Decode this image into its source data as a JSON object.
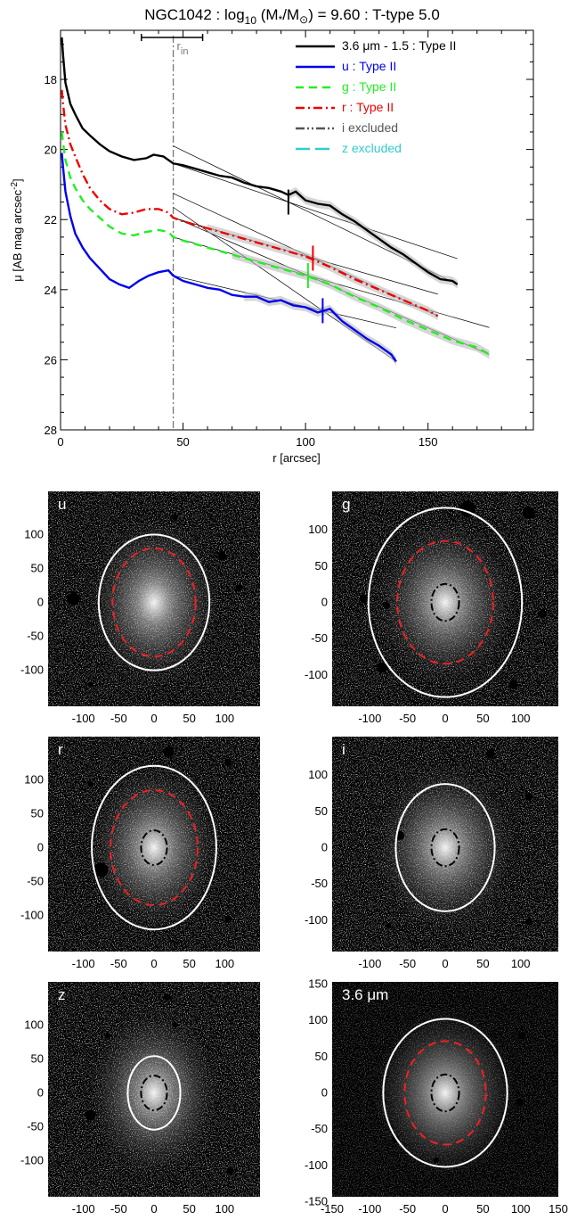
{
  "chart_data": [
    {
      "type": "line",
      "title": "NGC1042 : log10 (M*/M⊙) = 9.60 : T-type 5.0",
      "title_parts": {
        "prefix": "NGC1042 : log",
        "sub": "10",
        "mid": " (M",
        "star": "*",
        "slash": "/M",
        "sun": "⊙",
        "suffix": ") = 9.60 : T-type 5.0"
      },
      "xlabel": "r [arcsec]",
      "ylabel_parts": {
        "main": "μ [AB mag arcsec",
        "sup": "-2",
        "end": "]"
      },
      "xlim": [
        0,
        193
      ],
      "ylim": [
        28,
        16.6
      ],
      "y_inverted": true,
      "xticks": [
        0,
        50,
        100,
        150
      ],
      "yticks": [
        18,
        20,
        22,
        24,
        26,
        28
      ],
      "r_in": {
        "label": "r",
        "sub": "in",
        "value": 46,
        "bar": [
          33,
          58
        ]
      },
      "series": [
        {
          "name": "3.6 μm - 1.5 : Type II",
          "color": "#000000",
          "dash": "solid",
          "x": [
            0.5,
            1,
            2,
            4,
            6,
            9,
            12,
            16,
            20,
            25,
            30,
            35,
            38,
            42,
            46,
            50,
            55,
            60,
            65,
            70,
            75,
            80,
            85,
            90,
            93,
            96,
            100,
            105,
            110,
            115,
            120,
            125,
            130,
            135,
            140,
            145,
            150,
            155,
            160,
            162
          ],
          "y": [
            16.8,
            17.3,
            18.1,
            18.7,
            19.0,
            19.4,
            19.6,
            19.85,
            20.05,
            20.2,
            20.3,
            20.25,
            20.15,
            20.2,
            20.4,
            20.45,
            20.55,
            20.65,
            20.75,
            20.8,
            20.95,
            21.05,
            21.1,
            21.2,
            21.3,
            21.2,
            21.45,
            21.55,
            21.6,
            21.85,
            22.05,
            22.3,
            22.55,
            22.8,
            23.0,
            23.25,
            23.5,
            23.7,
            23.75,
            23.85
          ],
          "break_r": 93,
          "break_mu": 21.5
        },
        {
          "name": "u : Type II",
          "color": "#0000ee",
          "dash": "solid",
          "x": [
            0.5,
            1,
            2,
            4,
            6,
            9,
            12,
            16,
            20,
            24,
            28,
            32,
            36,
            40,
            44,
            46,
            50,
            55,
            60,
            65,
            70,
            75,
            80,
            85,
            90,
            95,
            100,
            105,
            110,
            115,
            120,
            125,
            130,
            135,
            137
          ],
          "y": [
            20.1,
            20.5,
            21.2,
            21.9,
            22.4,
            22.8,
            23.1,
            23.4,
            23.7,
            23.85,
            23.95,
            23.75,
            23.6,
            23.5,
            23.45,
            23.6,
            23.75,
            23.85,
            23.95,
            24.0,
            24.15,
            24.2,
            24.2,
            24.35,
            24.3,
            24.45,
            24.5,
            24.65,
            24.55,
            24.9,
            25.15,
            25.4,
            25.6,
            25.85,
            26.05
          ],
          "break_r": 107,
          "break_mu": 24.6
        },
        {
          "name": "g : Type II",
          "color": "#22ee22",
          "dash": "dashed",
          "x": [
            0.5,
            1,
            2,
            4,
            6,
            9,
            12,
            16,
            20,
            25,
            30,
            35,
            40,
            44,
            46,
            50,
            60,
            70,
            80,
            90,
            100,
            110,
            120,
            130,
            140,
            150,
            160,
            170,
            175
          ],
          "y": [
            19.5,
            19.8,
            20.3,
            20.8,
            21.1,
            21.45,
            21.7,
            21.95,
            22.2,
            22.4,
            22.45,
            22.35,
            22.3,
            22.35,
            22.5,
            22.6,
            22.8,
            23.0,
            23.2,
            23.4,
            23.6,
            23.85,
            24.2,
            24.5,
            24.85,
            25.15,
            25.45,
            25.65,
            25.85
          ],
          "break_r": 101,
          "break_mu": 23.6
        },
        {
          "name": "r : Type II",
          "color": "#ee0000",
          "dash": "dashdot",
          "x": [
            0.5,
            1,
            2,
            4,
            6,
            9,
            12,
            16,
            20,
            25,
            30,
            35,
            40,
            44,
            46,
            50,
            60,
            70,
            80,
            90,
            100,
            110,
            120,
            130,
            140,
            150,
            154
          ],
          "y": [
            18.3,
            18.7,
            19.3,
            19.85,
            20.2,
            20.7,
            21.1,
            21.45,
            21.7,
            21.85,
            21.8,
            21.7,
            21.7,
            21.8,
            21.95,
            22.05,
            22.25,
            22.45,
            22.65,
            22.85,
            23.05,
            23.35,
            23.7,
            24.0,
            24.3,
            24.6,
            24.75
          ],
          "break_r": 103,
          "break_mu": 23.1
        }
      ],
      "legend": [
        {
          "label": "3.6 μm - 1.5 : Type II",
          "color": "#000000",
          "dash": "solid"
        },
        {
          "label": "u : Type II",
          "color": "#0000ee",
          "dash": "solid"
        },
        {
          "label": "g : Type II",
          "color": "#22ee22",
          "dash": "dashed"
        },
        {
          "label": "r : Type II",
          "color": "#ee0000",
          "dash": "dashdot"
        },
        {
          "label": "i excluded",
          "color": "#555555",
          "dash": "dashdotdot"
        },
        {
          "label": "z excluded",
          "color": "#33cccc",
          "dash": "longdash"
        }
      ],
      "legend_position": "top-right"
    },
    {
      "type": "image-grid",
      "panels": [
        {
          "label": "u",
          "outer_a": 80,
          "outer_b": 98,
          "mid_a": 60,
          "mid_b": 78,
          "inner": false,
          "left_ticks": true,
          "bottom_ticks": true,
          "dark": false
        },
        {
          "label": "g",
          "outer_a": 104,
          "outer_b": 128,
          "mid_a": 65,
          "mid_b": 83,
          "inner": true,
          "left_ticks": true,
          "bottom_ticks": true,
          "dark": false
        },
        {
          "label": "r",
          "outer_a": 90,
          "outer_b": 118,
          "mid_a": 63,
          "mid_b": 83,
          "inner": true,
          "left_ticks": true,
          "bottom_ticks": true,
          "dark": false
        },
        {
          "label": "i",
          "outer_a": 67,
          "outer_b": 86,
          "mid_a": 0,
          "mid_b": 0,
          "inner": true,
          "left_ticks": true,
          "bottom_ticks": true,
          "dark": false
        },
        {
          "label": "z",
          "outer_a": 38,
          "outer_b": 53,
          "mid_a": 0,
          "mid_b": 0,
          "inner": true,
          "left_ticks": true,
          "bottom_ticks": true,
          "dark": false
        },
        {
          "label": "3.6 μm",
          "outer_a": 84,
          "outer_b": 100,
          "mid_a": 55,
          "mid_b": 70,
          "inner": true,
          "left_ticks": true,
          "bottom_ticks": true,
          "dark": true
        }
      ],
      "tick_values": [
        -100,
        -50,
        0,
        50,
        100
      ],
      "extended_ticks_36": [
        -150,
        -100,
        -50,
        0,
        50,
        100,
        150
      ]
    }
  ]
}
